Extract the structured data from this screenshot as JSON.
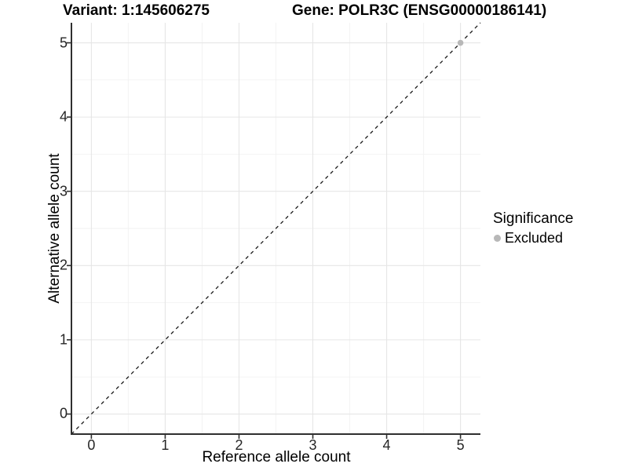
{
  "chart_data": {
    "type": "scatter",
    "titles": {
      "left": "Variant: 1:145606275",
      "right": "Gene: POLR3C (ENSG00000186141)"
    },
    "xlabel": "Reference allele count",
    "ylabel": "Alternative allele count",
    "xlim": [
      -0.27,
      5.27
    ],
    "ylim": [
      -0.27,
      5.27
    ],
    "xticks": [
      0,
      1,
      2,
      3,
      4,
      5
    ],
    "yticks": [
      0,
      1,
      2,
      3,
      4,
      5
    ],
    "grid": {
      "major": true,
      "minor": true,
      "major_color": "#e6e6e6",
      "minor_color": "#f2f2f2"
    },
    "reference_line": {
      "slope": 1,
      "intercept": 0,
      "style": "dashed",
      "color": "#1a1a1a"
    },
    "series": [
      {
        "name": "Excluded",
        "color": "#b8b8b8",
        "points": [
          {
            "x": 5,
            "y": 5
          }
        ]
      }
    ],
    "legend": {
      "title": "Significance",
      "position": "right",
      "items": [
        {
          "label": "Excluded",
          "color": "#b8b8b8"
        }
      ]
    },
    "axis_color": "#2f2f2f",
    "background": "#ffffff"
  }
}
